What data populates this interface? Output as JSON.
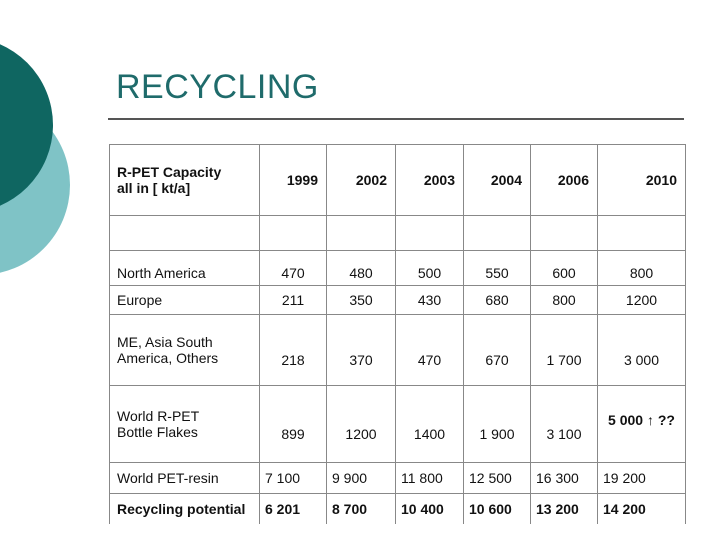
{
  "slide": {
    "title": "RECYCLING",
    "colors": {
      "title": "#1f6b6b",
      "dark_circle": "#0f6661",
      "light_circle": "#7fc3c6"
    }
  },
  "table": {
    "header_label_line1": "R-PET Capacity",
    "header_label_line2": "all in [ kt/a]",
    "years": [
      "1999",
      "2002",
      "2003",
      "2004",
      "2006",
      "2010"
    ],
    "rows": [
      {
        "label": "North America",
        "values": [
          "470",
          "480",
          "500",
          "550",
          "600",
          "800"
        ]
      },
      {
        "label": "Europe",
        "values": [
          "211",
          "350",
          "430",
          "680",
          "800",
          "1200"
        ]
      },
      {
        "label_line1": "ME, Asia  South",
        "label_line2": "America, Others",
        "values": [
          "218",
          "370",
          "470",
          "670",
          "1 700",
          "3 000"
        ]
      },
      {
        "label_line1": "World R-PET",
        "label_line2": "Bottle Flakes",
        "values": [
          "899",
          "1200",
          "1400",
          "1 900",
          "3 100",
          "5 000 ↑ ??"
        ]
      },
      {
        "label": "World PET-resin",
        "values": [
          "7 100",
          "9 900",
          "11 800",
          "12 500",
          "16 300",
          "19 200"
        ]
      },
      {
        "label": "Recycling potential",
        "values": [
          "6 201",
          "8 700",
          "10 400",
          "10 600",
          "13 200",
          "14 200"
        ]
      }
    ]
  }
}
